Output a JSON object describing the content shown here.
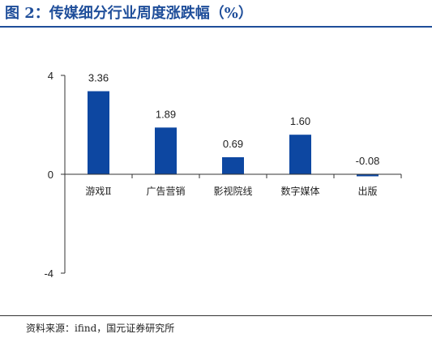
{
  "title": "图 2：传媒细分行业周度涨跌幅（%）",
  "source": "资料来源：ifind，国元证券研究所",
  "colors": {
    "bar": "#0d47a1",
    "title": "#1f4e9a",
    "axis": "#333333"
  },
  "chart_data": {
    "type": "bar",
    "categories": [
      "游戏Ⅱ",
      "广告营销",
      "影视院线",
      "数字媒体",
      "出版"
    ],
    "values": [
      3.36,
      1.89,
      0.69,
      1.6,
      -0.08
    ],
    "data_labels": [
      "3.36",
      "1.89",
      "0.69",
      "1.60",
      "-0.08"
    ],
    "y_ticks": [
      4,
      0,
      -4
    ],
    "ylim": [
      -4,
      4
    ],
    "grid": false,
    "legend": "none"
  }
}
